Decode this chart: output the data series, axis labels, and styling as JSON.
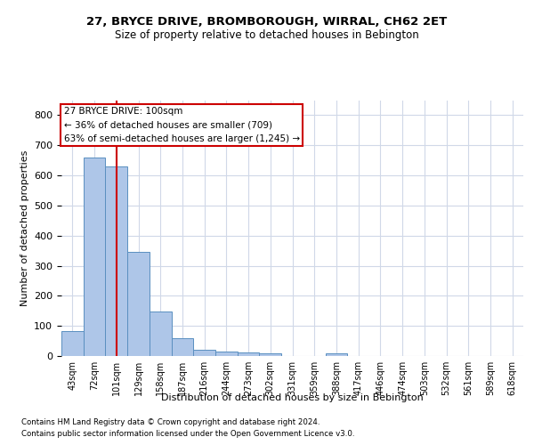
{
  "title1": "27, BRYCE DRIVE, BROMBOROUGH, WIRRAL, CH62 2ET",
  "title2": "Size of property relative to detached houses in Bebington",
  "xlabel": "Distribution of detached houses by size in Bebington",
  "ylabel": "Number of detached properties",
  "footnote1": "Contains HM Land Registry data © Crown copyright and database right 2024.",
  "footnote2": "Contains public sector information licensed under the Open Government Licence v3.0.",
  "bins": [
    "43sqm",
    "72sqm",
    "101sqm",
    "129sqm",
    "158sqm",
    "187sqm",
    "216sqm",
    "244sqm",
    "273sqm",
    "302sqm",
    "331sqm",
    "359sqm",
    "388sqm",
    "417sqm",
    "446sqm",
    "474sqm",
    "503sqm",
    "532sqm",
    "561sqm",
    "589sqm",
    "618sqm"
  ],
  "values": [
    83,
    660,
    630,
    345,
    148,
    58,
    20,
    15,
    12,
    8,
    0,
    0,
    8,
    0,
    0,
    0,
    0,
    0,
    0,
    0,
    0
  ],
  "bar_color": "#aec6e8",
  "bar_edge_color": "#5a8fc0",
  "grid_color": "#d0d8e8",
  "red_line_x": 2,
  "annotation_text": "27 BRYCE DRIVE: 100sqm\n← 36% of detached houses are smaller (709)\n63% of semi-detached houses are larger (1,245) →",
  "annotation_box_color": "#ffffff",
  "annotation_box_edge": "#cc0000",
  "property_line_color": "#cc0000",
  "ylim": [
    0,
    850
  ],
  "yticks": [
    0,
    100,
    200,
    300,
    400,
    500,
    600,
    700,
    800
  ],
  "background_color": "#ffffff"
}
